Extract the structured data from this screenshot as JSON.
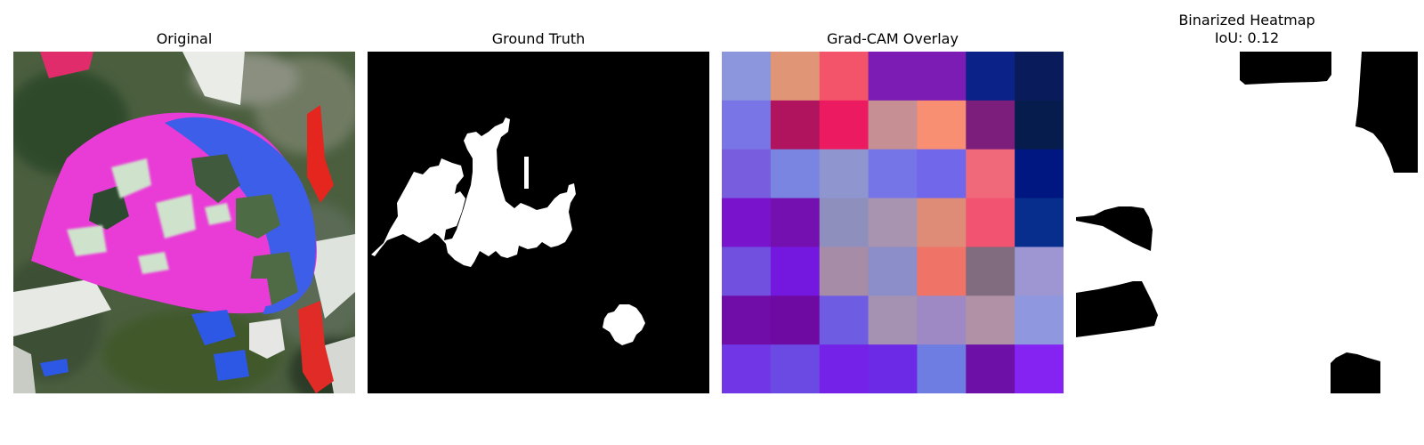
{
  "panels": [
    {
      "title": "Original"
    },
    {
      "title": "Ground Truth"
    },
    {
      "title": "Grad-CAM Overlay"
    },
    {
      "title_line1": "Binarized Heatmap",
      "title_line2": "IoU: 0.12"
    }
  ],
  "gradcam_grid": {
    "rows": 7,
    "cols": 7,
    "colors": [
      [
        "#8b96dc",
        "#e09676",
        "#f45469",
        "#7c1cb4",
        "#7c1cb4",
        "#0b2388",
        "#0a1b5c"
      ],
      [
        "#7a75e6",
        "#b0145e",
        "#ec1a60",
        "#c68f93",
        "#f88e72",
        "#7b1e7c",
        "#061c4c"
      ],
      [
        "#795ddf",
        "#7a85e1",
        "#8f95cf",
        "#7675e7",
        "#7167ea",
        "#f0697b",
        "#001782"
      ],
      [
        "#7a14cc",
        "#7410b0",
        "#8f8fbd",
        "#a894b0",
        "#de8c78",
        "#f25370",
        "#072e8c"
      ],
      [
        "#7150e0",
        "#7418e0",
        "#a78ca8",
        "#8b8ec8",
        "#ef7367",
        "#816b7e",
        "#9d96d3"
      ],
      [
        "#700ca8",
        "#6e0aa2",
        "#6e5de2",
        "#a591b2",
        "#9e89c5",
        "#b191a5",
        "#8f98de"
      ],
      [
        "#7137e6",
        "#6b4ae3",
        "#7522e8",
        "#6d2ae6",
        "#6e7de2",
        "#6d10a8",
        "#8523f3"
      ]
    ]
  },
  "colors": {
    "mask_black": "#000000",
    "mask_white": "#ffffff"
  }
}
